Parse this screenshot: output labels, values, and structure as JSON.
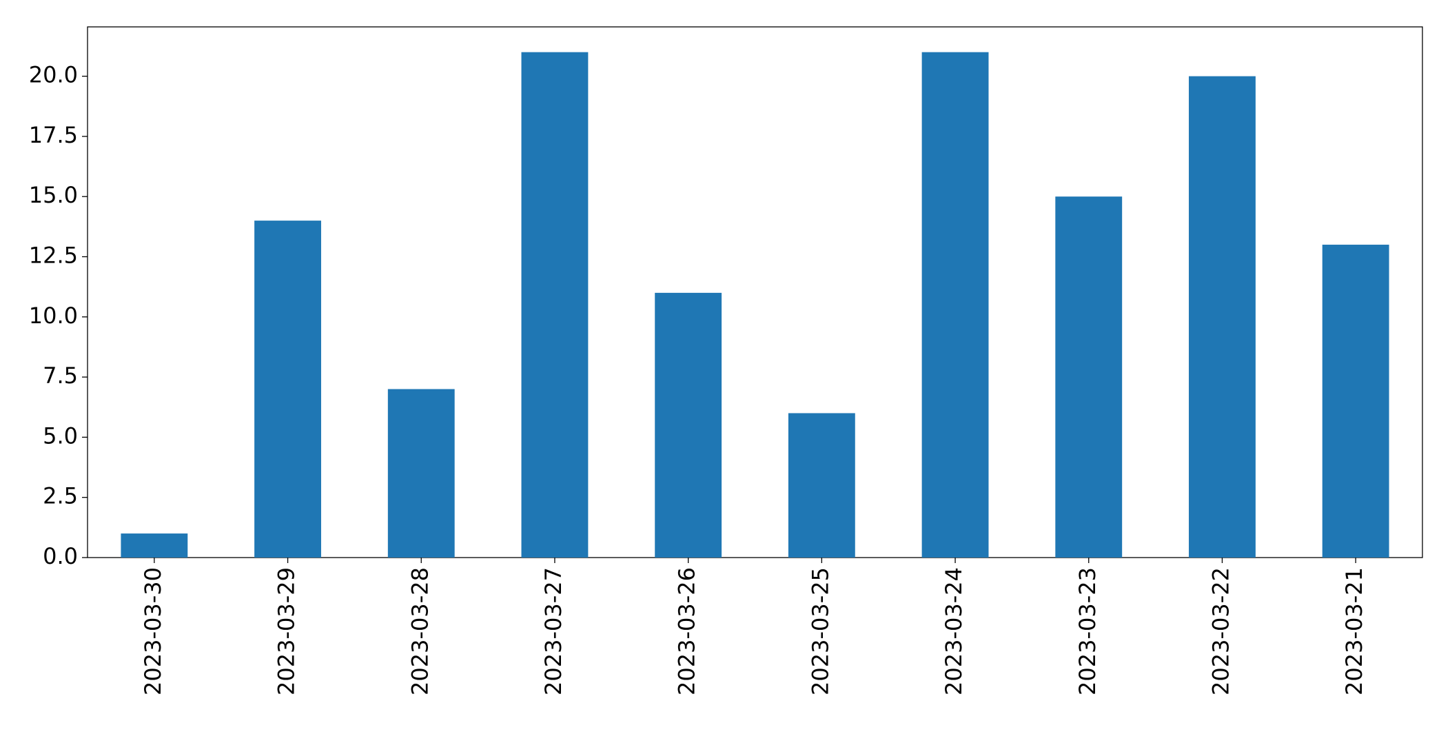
{
  "chart_data": {
    "type": "bar",
    "categories": [
      "2023-03-30",
      "2023-03-29",
      "2023-03-28",
      "2023-03-27",
      "2023-03-26",
      "2023-03-25",
      "2023-03-24",
      "2023-03-23",
      "2023-03-22",
      "2023-03-21"
    ],
    "values": [
      1,
      14,
      7,
      21,
      11,
      6,
      21,
      15,
      20,
      13
    ],
    "color": "#1f77b4",
    "ylim": [
      0,
      22.05
    ],
    "yticks": [
      {
        "value": 0,
        "label": "0.0"
      },
      {
        "value": 2.5,
        "label": "2.5"
      },
      {
        "value": 5,
        "label": "5.0"
      },
      {
        "value": 7.5,
        "label": "7.5"
      },
      {
        "value": 10,
        "label": "10.0"
      },
      {
        "value": 12.5,
        "label": "12.5"
      },
      {
        "value": 15,
        "label": "15.0"
      },
      {
        "value": 17.5,
        "label": "17.5"
      },
      {
        "value": 20,
        "label": "20.0"
      }
    ],
    "grid": false
  }
}
